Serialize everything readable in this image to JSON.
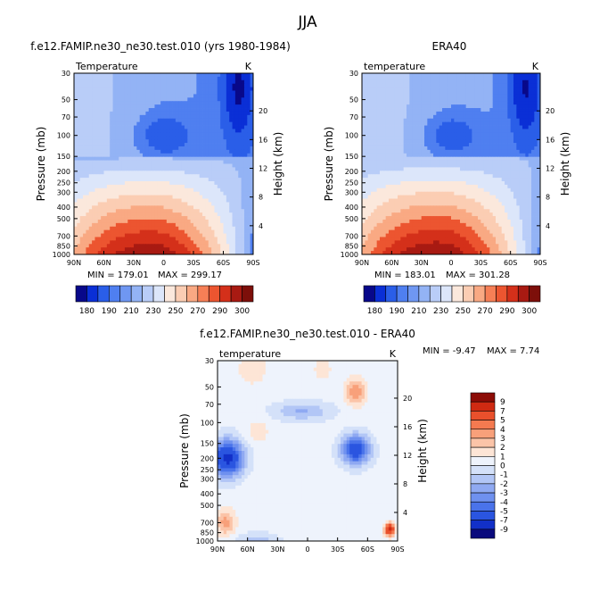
{
  "season": "JJA",
  "colors": {
    "full_field_levels": [
      "#08088a",
      "#0a2fd6",
      "#2a5ee8",
      "#4f7ff0",
      "#6f97f2",
      "#93b3f5",
      "#b9cdf8",
      "#dce6fa",
      "#fbe8dc",
      "#fbcdb3",
      "#f9a983",
      "#f67f56",
      "#ec5530",
      "#d4301a",
      "#a81a12",
      "#7d0f0a"
    ],
    "diff_levels": [
      "#0a0a7d",
      "#1230c8",
      "#2a55e0",
      "#4a73ea",
      "#6f91ef",
      "#8fa9f2",
      "#b2c6f6",
      "#d4e1f9",
      "#eef3fc",
      "#fde5d6",
      "#fbc4a8",
      "#f8a07a",
      "#f47a50",
      "#e9502c",
      "#cf2a12",
      "#8c0c06"
    ]
  },
  "chart_data": [
    {
      "type": "heatmap",
      "title": "f.e12.FAMIP.ne30_ne30.test.010 (yrs 1980-1984)",
      "subtitle_left": "Temperature",
      "units": "K",
      "ylabel": "Pressure (mb)",
      "y2label": "Height (km)",
      "x_ticks": [
        "90N",
        "60N",
        "30N",
        "0",
        "30S",
        "60S",
        "90S"
      ],
      "y_ticks": [
        "30",
        "50",
        "70",
        "100",
        "150",
        "200",
        "250",
        "300",
        "400",
        "500",
        "700",
        "850",
        "1000"
      ],
      "y2_ticks": [
        "20",
        "16",
        "12",
        "8",
        "4"
      ],
      "min_text": "MIN = 179.01",
      "max_text": "MAX = 299.17",
      "colorbar_labels": [
        "180",
        "190",
        "210",
        "230",
        "250",
        "270",
        "290",
        "300"
      ]
    },
    {
      "type": "heatmap",
      "title": "ERA40",
      "subtitle_left": "temperature",
      "units": "K",
      "ylabel": "Pressure (mb)",
      "y2label": "Height (km)",
      "x_ticks": [
        "90N",
        "60N",
        "30N",
        "0",
        "30S",
        "60S",
        "90S"
      ],
      "y_ticks": [
        "30",
        "50",
        "70",
        "100",
        "150",
        "200",
        "250",
        "300",
        "400",
        "500",
        "700",
        "850",
        "1000"
      ],
      "y2_ticks": [
        "20",
        "16",
        "12",
        "8",
        "4"
      ],
      "min_text": "MIN = 183.01",
      "max_text": "MAX = 301.28",
      "colorbar_labels": [
        "180",
        "190",
        "210",
        "230",
        "250",
        "270",
        "290",
        "300"
      ]
    },
    {
      "type": "heatmap",
      "title": "f.e12.FAMIP.ne30_ne30.test.010 - ERA40",
      "subtitle_left": "temperature",
      "units": "K",
      "ylabel": "Pressure (mb)",
      "y2label": "Height (km)",
      "x_ticks": [
        "90N",
        "60N",
        "30N",
        "0",
        "30S",
        "60S",
        "90S"
      ],
      "y_ticks": [
        "30",
        "50",
        "70",
        "100",
        "150",
        "200",
        "250",
        "300",
        "400",
        "500",
        "700",
        "850",
        "1000"
      ],
      "y2_ticks": [
        "20",
        "16",
        "12",
        "8",
        "4"
      ],
      "min_text": "MIN =   -9.47",
      "max_text": "MAX =    7.74",
      "colorbar_labels": [
        "9",
        "7",
        "5",
        "4",
        "3",
        "2",
        "1",
        "0",
        "-1",
        "-2",
        "-3",
        "-4",
        "-5",
        "-7",
        "-9"
      ]
    }
  ]
}
